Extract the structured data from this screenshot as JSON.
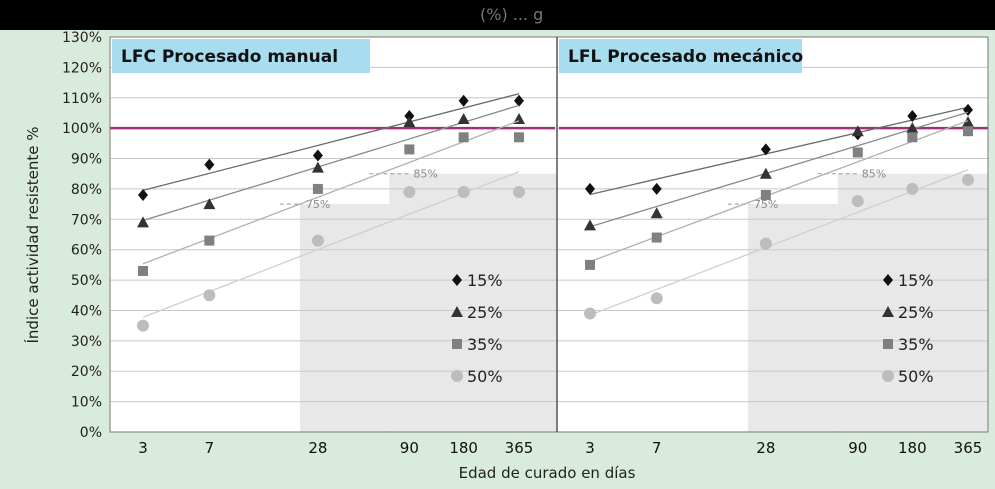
{
  "header": {
    "title_fragment": "(%) ... g"
  },
  "colors": {
    "background": "#d9ebdc",
    "header_band": "#000000",
    "plot_bg": "#ffffff",
    "reference_line": "#a0307a",
    "title_tag": "#a8dcef",
    "shade": "#e8e8e8",
    "series": [
      "#111111",
      "#333333",
      "#808080",
      "#bdbdbd"
    ]
  },
  "chart_data": {
    "type": "scatter",
    "ylabel": "Índice actividad resistente %",
    "xlabel": "Edad de curado en días",
    "x_scale": "log",
    "xticks": [
      3,
      7,
      28,
      90,
      180,
      365
    ],
    "ylim": [
      0,
      130
    ],
    "yticks": [
      "0%",
      "10%",
      "20%",
      "30%",
      "40%",
      "50%",
      "60%",
      "70%",
      "80%",
      "90%",
      "100%",
      "110%",
      "120%",
      "130%"
    ],
    "grid": true,
    "reference_line": 100,
    "legend_position": "bottom-right",
    "marker_names": [
      "diamond",
      "triangle",
      "square",
      "circle"
    ],
    "panels": [
      {
        "title": "LFC Procesado manual",
        "thresholds": [
          {
            "label": "75%",
            "value": 75,
            "from_day": 28
          },
          {
            "label": "85%",
            "value": 85,
            "from_day": 90
          }
        ],
        "series": [
          {
            "name": "15%",
            "values": [
              78,
              88,
              91,
              104,
              109,
              109
            ]
          },
          {
            "name": "25%",
            "values": [
              69,
              75,
              87,
              102,
              103,
              103
            ]
          },
          {
            "name": "35%",
            "values": [
              53,
              63,
              80,
              93,
              97,
              97
            ]
          },
          {
            "name": "50%",
            "values": [
              35,
              45,
              63,
              79,
              79,
              79
            ]
          }
        ]
      },
      {
        "title": "LFL Procesado mecánico",
        "thresholds": [
          {
            "label": "75%",
            "value": 75,
            "from_day": 28
          },
          {
            "label": "85%",
            "value": 85,
            "from_day": 90
          }
        ],
        "series": [
          {
            "name": "15%",
            "values": [
              80,
              80,
              93,
              98,
              104,
              106
            ]
          },
          {
            "name": "25%",
            "values": [
              68,
              72,
              85,
              99,
              100,
              102
            ]
          },
          {
            "name": "35%",
            "values": [
              55,
              64,
              78,
              92,
              97,
              99
            ]
          },
          {
            "name": "50%",
            "values": [
              39,
              44,
              62,
              76,
              80,
              83
            ]
          }
        ]
      }
    ]
  }
}
